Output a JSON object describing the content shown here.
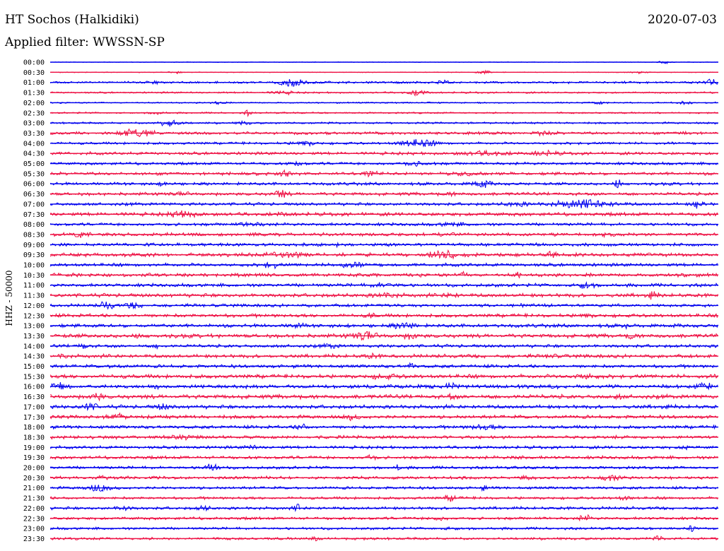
{
  "header": {
    "station": "HT Sochos (Halkidiki)",
    "filter_label": "Applied filter: WWSSN-SP",
    "date": "2020-07-03"
  },
  "chart_data": {
    "type": "line",
    "title": "HT Sochos (Halkidiki)",
    "subtitle": "Applied filter: WWSSN-SP",
    "ylabel": "HHZ - 50000",
    "xlabel": "",
    "grid": false,
    "legend": "none",
    "colors": [
      "#0000ee",
      "#ee1144"
    ],
    "rows": [
      "00:00",
      "00:30",
      "01:00",
      "01:30",
      "02:00",
      "02:30",
      "03:00",
      "03:30",
      "04:00",
      "04:30",
      "05:00",
      "05:30",
      "06:00",
      "06:30",
      "07:00",
      "07:30",
      "08:00",
      "08:30",
      "09:00",
      "09:30",
      "10:00",
      "10:30",
      "11:00",
      "11:30",
      "12:00",
      "12:30",
      "13:00",
      "13:30",
      "14:00",
      "14:30",
      "15:00",
      "15:30",
      "16:00",
      "16:30",
      "17:00",
      "17:30",
      "18:00",
      "18:30",
      "19:00",
      "19:30",
      "20:00",
      "20:30",
      "21:00",
      "21:30",
      "22:00",
      "22:30",
      "23:00",
      "23:30"
    ],
    "noise_level": [
      0.08,
      0.1,
      0.28,
      0.22,
      0.18,
      0.2,
      0.25,
      0.35,
      0.32,
      0.38,
      0.35,
      0.4,
      0.38,
      0.42,
      0.4,
      0.45,
      0.38,
      0.42,
      0.4,
      0.45,
      0.42,
      0.45,
      0.42,
      0.48,
      0.4,
      0.44,
      0.45,
      0.52,
      0.42,
      0.46,
      0.42,
      0.5,
      0.48,
      0.55,
      0.48,
      0.45,
      0.42,
      0.42,
      0.38,
      0.4,
      0.36,
      0.38,
      0.36,
      0.34,
      0.38,
      0.36,
      0.32,
      0.32
    ],
    "events": [
      [
        [
          0.92,
          0.3,
          0.01
        ]
      ],
      [
        [
          0.65,
          0.4,
          0.01
        ],
        [
          0.19,
          0.3,
          0.01
        ],
        [
          0.88,
          0.3,
          0.01
        ]
      ],
      [
        [
          0.36,
          1.0,
          0.02
        ],
        [
          0.99,
          0.6,
          0.01
        ],
        [
          0.59,
          0.4,
          0.01
        ],
        [
          0.15,
          0.3,
          0.01
        ]
      ],
      [
        [
          0.55,
          0.6,
          0.015
        ],
        [
          0.35,
          0.4,
          0.015
        ]
      ],
      [
        [
          0.82,
          0.3,
          0.01
        ],
        [
          0.95,
          0.3,
          0.01
        ],
        [
          0.25,
          0.3,
          0.01
        ]
      ],
      [
        [
          0.295,
          0.7,
          0.005
        ],
        [
          0.16,
          0.3,
          0.01
        ]
      ],
      [
        [
          0.18,
          0.9,
          0.015
        ],
        [
          0.29,
          0.4,
          0.01
        ]
      ],
      [
        [
          0.13,
          1.0,
          0.025
        ],
        [
          0.74,
          0.4,
          0.015
        ],
        [
          0.95,
          0.3,
          0.01
        ]
      ],
      [
        [
          0.55,
          1.0,
          0.025
        ],
        [
          0.38,
          0.5,
          0.015
        ]
      ],
      [
        [
          0.65,
          0.5,
          0.03
        ],
        [
          0.74,
          0.45,
          0.02
        ]
      ],
      [
        [
          0.37,
          0.4,
          0.01
        ],
        [
          0.55,
          0.4,
          0.02
        ]
      ],
      [
        [
          0.35,
          0.5,
          0.01
        ],
        [
          0.48,
          0.5,
          0.01
        ],
        [
          0.62,
          0.4,
          0.01
        ]
      ],
      [
        [
          0.645,
          1.0,
          0.012
        ],
        [
          0.85,
          1.0,
          0.004
        ],
        [
          0.17,
          0.3,
          0.01
        ]
      ],
      [
        [
          0.345,
          1.0,
          0.01
        ],
        [
          0.2,
          0.3,
          0.01
        ],
        [
          0.6,
          0.3,
          0.01
        ]
      ],
      [
        [
          0.8,
          1.0,
          0.04
        ],
        [
          0.97,
          1.0,
          0.008
        ],
        [
          0.7,
          0.4,
          0.02
        ]
      ],
      [
        [
          0.2,
          0.7,
          0.02
        ],
        [
          0.35,
          0.4,
          0.01
        ]
      ],
      [
        [
          0.3,
          0.4,
          0.02
        ],
        [
          0.6,
          0.3,
          0.02
        ]
      ],
      [
        [
          0.045,
          0.6,
          0.01
        ],
        [
          0.6,
          0.3,
          0.01
        ],
        [
          0.83,
          0.3,
          0.01
        ]
      ],
      [
        [
          0.425,
          0.7,
          0.005
        ],
        [
          0.15,
          0.3,
          0.01
        ],
        [
          0.8,
          0.3,
          0.01
        ]
      ],
      [
        [
          0.59,
          1.0,
          0.02
        ],
        [
          0.75,
          0.8,
          0.008
        ],
        [
          0.35,
          0.5,
          0.03
        ]
      ],
      [
        [
          0.33,
          0.7,
          0.01
        ],
        [
          0.45,
          0.4,
          0.02
        ]
      ],
      [
        [
          0.62,
          0.6,
          0.005
        ],
        [
          0.7,
          0.6,
          0.004
        ],
        [
          0.95,
          0.4,
          0.005
        ]
      ],
      [
        [
          0.8,
          0.7,
          0.012
        ],
        [
          0.5,
          0.4,
          0.02
        ]
      ],
      [
        [
          0.9,
          0.8,
          0.008
        ],
        [
          0.5,
          0.4,
          0.02
        ],
        [
          0.6,
          0.4,
          0.01
        ]
      ],
      [
        [
          0.085,
          0.8,
          0.01
        ],
        [
          0.125,
          0.6,
          0.01
        ],
        [
          0.7,
          0.3,
          0.01
        ]
      ],
      [
        [
          0.48,
          0.7,
          0.005
        ],
        [
          0.8,
          0.4,
          0.01
        ]
      ],
      [
        [
          0.53,
          0.9,
          0.015
        ],
        [
          0.37,
          0.5,
          0.01
        ],
        [
          0.86,
          0.6,
          0.004
        ]
      ],
      [
        [
          0.47,
          0.7,
          0.02
        ],
        [
          0.87,
          1.0,
          0.005
        ],
        [
          0.54,
          0.6,
          0.01
        ]
      ],
      [
        [
          0.05,
          0.9,
          0.005
        ],
        [
          0.16,
          0.7,
          0.003
        ],
        [
          0.42,
          0.5,
          0.01
        ]
      ],
      [
        [
          0.75,
          0.8,
          0.006
        ],
        [
          0.48,
          0.4,
          0.01
        ],
        [
          0.02,
          0.5,
          0.005
        ]
      ],
      [
        [
          0.54,
          0.8,
          0.004
        ],
        [
          0.1,
          0.4,
          0.01
        ]
      ],
      [
        [
          0.5,
          0.4,
          0.02
        ],
        [
          0.8,
          0.4,
          0.02
        ]
      ],
      [
        [
          0.01,
          1.0,
          0.01
        ],
        [
          0.98,
          1.0,
          0.012
        ],
        [
          0.16,
          0.8,
          0.005
        ],
        [
          0.6,
          0.5,
          0.01
        ]
      ],
      [
        [
          0.07,
          0.9,
          0.008
        ],
        [
          0.6,
          0.5,
          0.005
        ],
        [
          0.85,
          0.5,
          0.005
        ]
      ],
      [
        [
          0.06,
          0.8,
          0.01
        ],
        [
          0.17,
          0.7,
          0.01
        ],
        [
          0.92,
          0.6,
          0.004
        ]
      ],
      [
        [
          0.1,
          0.6,
          0.01
        ],
        [
          0.45,
          0.4,
          0.01
        ]
      ],
      [
        [
          0.375,
          1.0,
          0.006
        ],
        [
          0.65,
          0.5,
          0.02
        ]
      ],
      [
        [
          0.2,
          0.3,
          0.02
        ]
      ],
      [
        [
          0.95,
          0.6,
          0.005
        ],
        [
          0.3,
          0.3,
          0.01
        ]
      ],
      [
        [
          0.48,
          0.7,
          0.006
        ],
        [
          0.7,
          0.3,
          0.01
        ]
      ],
      [
        [
          0.24,
          0.8,
          0.012
        ],
        [
          0.52,
          0.5,
          0.004
        ]
      ],
      [
        [
          0.08,
          0.5,
          0.01
        ],
        [
          0.84,
          0.7,
          0.01
        ],
        [
          0.71,
          0.4,
          0.01
        ]
      ],
      [
        [
          0.07,
          0.9,
          0.015
        ],
        [
          0.65,
          0.7,
          0.004
        ]
      ],
      [
        [
          0.6,
          0.6,
          0.01
        ],
        [
          0.86,
          0.4,
          0.01
        ]
      ],
      [
        [
          0.37,
          1.0,
          0.004
        ],
        [
          0.11,
          0.6,
          0.01
        ],
        [
          0.23,
          0.6,
          0.008
        ]
      ],
      [
        [
          0.8,
          0.8,
          0.008
        ],
        [
          0.58,
          0.4,
          0.01
        ]
      ],
      [
        [
          0.96,
          0.9,
          0.004
        ],
        [
          0.6,
          0.3,
          0.01
        ]
      ],
      [
        [
          0.91,
          0.6,
          0.005
        ],
        [
          0.4,
          0.3,
          0.01
        ]
      ]
    ]
  }
}
